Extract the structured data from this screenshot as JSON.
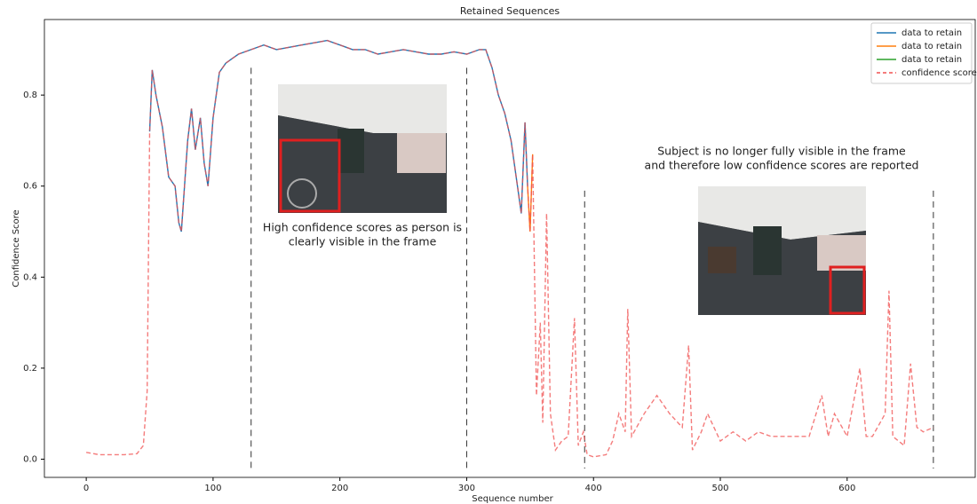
{
  "chart_data": {
    "type": "line",
    "title": "Retained Sequences",
    "x_label": "Sequence number",
    "y_label": "Confidence Score",
    "xlim": [
      -33,
      701
    ],
    "ylim": [
      -0.04,
      0.966
    ],
    "xticks": [
      0,
      100,
      200,
      300,
      400,
      500,
      600
    ],
    "yticks": [
      {
        "value": 0,
        "label": "0.0"
      },
      0.2,
      0.4,
      0.6,
      0.8
    ],
    "legend": "upper right",
    "x": [
      0,
      10,
      20,
      30,
      40,
      45,
      48,
      50,
      52,
      55,
      60,
      65,
      70,
      73,
      75,
      80,
      83,
      86,
      90,
      93,
      96,
      100,
      105,
      110,
      115,
      120,
      130,
      140,
      150,
      160,
      170,
      180,
      190,
      200,
      210,
      220,
      230,
      240,
      250,
      260,
      270,
      280,
      290,
      300,
      310,
      315,
      320,
      325,
      330,
      335,
      340,
      343,
      346,
      348,
      350,
      352,
      355,
      358,
      360,
      363,
      366,
      370,
      375,
      380,
      385,
      388,
      392,
      395,
      400,
      410,
      415,
      420,
      425,
      427,
      430,
      440,
      450,
      460,
      470,
      475,
      478,
      485,
      490,
      500,
      510,
      520,
      530,
      540,
      550,
      560,
      570,
      580,
      585,
      590,
      600,
      610,
      615,
      620,
      630,
      633,
      636,
      645,
      650,
      655,
      660,
      668
    ],
    "series": [
      {
        "name": "data to retain",
        "color": "#1f77b4",
        "values": [
          null,
          null,
          null,
          null,
          null,
          null,
          null,
          0.72,
          0.855,
          0.8,
          0.73,
          0.62,
          0.6,
          0.52,
          0.5,
          0.7,
          0.77,
          0.68,
          0.75,
          0.65,
          0.6,
          0.75,
          0.85,
          0.87,
          0.88,
          0.89,
          0.9,
          0.91,
          0.9,
          0.905,
          0.91,
          0.915,
          0.92,
          0.91,
          0.9,
          0.9,
          0.89,
          0.895,
          0.9,
          0.895,
          0.89,
          0.89,
          0.895,
          0.89,
          0.9,
          0.9,
          0.86,
          0.8,
          0.76,
          0.7,
          0.6,
          0.54,
          0.74,
          0.6,
          null,
          null,
          null,
          null,
          null,
          null,
          null,
          null,
          null,
          null,
          null,
          null,
          null,
          null,
          null,
          null,
          null,
          null,
          null,
          null,
          null,
          null,
          null,
          null,
          null,
          null,
          null,
          null,
          null,
          null,
          null,
          null,
          null,
          null,
          null,
          null,
          null,
          null,
          null,
          null,
          null,
          null,
          null,
          null,
          null,
          null,
          null,
          null,
          null,
          null,
          null,
          null
        ]
      },
      {
        "name": "data to retain",
        "color": "#ff7f0e",
        "values": [
          null,
          null,
          null,
          null,
          null,
          null,
          null,
          null,
          null,
          null,
          null,
          null,
          null,
          null,
          null,
          null,
          null,
          null,
          null,
          null,
          null,
          null,
          null,
          null,
          null,
          null,
          null,
          null,
          null,
          null,
          null,
          null,
          null,
          null,
          null,
          null,
          null,
          null,
          null,
          null,
          null,
          null,
          null,
          null,
          null,
          null,
          null,
          null,
          null,
          null,
          null,
          null,
          null,
          0.6,
          0.5,
          0.67,
          null,
          null,
          null,
          null,
          null,
          null,
          null,
          null,
          null,
          null,
          null,
          null,
          null,
          null,
          null,
          null,
          null,
          null,
          null,
          null,
          null,
          null,
          null,
          null,
          null,
          null,
          null,
          null,
          null,
          null,
          null,
          null,
          null,
          null,
          null,
          null,
          null,
          null,
          null,
          null,
          null,
          null,
          null,
          null,
          null,
          null,
          null,
          null,
          null,
          null
        ]
      },
      {
        "name": "data to retain",
        "color": "#2ca02c",
        "values": [
          null,
          null,
          null,
          null,
          null,
          null,
          null,
          null,
          null,
          null,
          null,
          null,
          null,
          null,
          null,
          null,
          null,
          null,
          null,
          null,
          null,
          null,
          null,
          null,
          null,
          null,
          null,
          null,
          null,
          null,
          null,
          null,
          null,
          null,
          null,
          null,
          null,
          null,
          null,
          null,
          null,
          null,
          null,
          null,
          null,
          null,
          null,
          null,
          null,
          null,
          null,
          null,
          null,
          null,
          null,
          null,
          null,
          null,
          null,
          null,
          null,
          null,
          null,
          null,
          null,
          null,
          null,
          null,
          null,
          null,
          null,
          null,
          null,
          null,
          null,
          null,
          null,
          null,
          null,
          null,
          null,
          null,
          null,
          null,
          null,
          null,
          null,
          null,
          null,
          null,
          null,
          null,
          null,
          null,
          null,
          null,
          null,
          null,
          null,
          null,
          null,
          null,
          null,
          null,
          null,
          null
        ]
      },
      {
        "name": "confidence score",
        "color": "#f05050",
        "dashed": true,
        "values": [
          0.015,
          0.01,
          0.01,
          0.01,
          0.012,
          0.03,
          0.15,
          0.72,
          0.855,
          0.8,
          0.73,
          0.62,
          0.6,
          0.52,
          0.5,
          0.7,
          0.77,
          0.68,
          0.75,
          0.65,
          0.6,
          0.75,
          0.85,
          0.87,
          0.88,
          0.89,
          0.9,
          0.91,
          0.9,
          0.905,
          0.91,
          0.915,
          0.92,
          0.91,
          0.9,
          0.9,
          0.89,
          0.895,
          0.9,
          0.895,
          0.89,
          0.89,
          0.895,
          0.89,
          0.9,
          0.9,
          0.86,
          0.8,
          0.76,
          0.7,
          0.6,
          0.54,
          0.74,
          0.6,
          0.5,
          0.67,
          0.14,
          0.3,
          0.08,
          0.54,
          0.1,
          0.02,
          0.04,
          0.05,
          0.31,
          0.03,
          0.06,
          0.01,
          0.005,
          0.01,
          0.04,
          0.1,
          0.06,
          0.33,
          0.05,
          0.1,
          0.14,
          0.1,
          0.07,
          0.25,
          0.02,
          0.06,
          0.1,
          0.04,
          0.06,
          0.04,
          0.06,
          0.05,
          0.05,
          0.05,
          0.05,
          0.14,
          0.05,
          0.1,
          0.05,
          0.2,
          0.05,
          0.05,
          0.1,
          0.37,
          0.05,
          0.03,
          0.21,
          0.07,
          0.06,
          0.07
        ]
      }
    ],
    "vlines": [
      {
        "x": 130,
        "ymax": 0.86
      },
      {
        "x": 300,
        "ymax": 0.86
      },
      {
        "x": 393,
        "ymax": 0.59
      },
      {
        "x": 668,
        "ymax": 0.59
      }
    ],
    "annotations": [
      {
        "lines": [
          "High confidence scores as person is",
          "clearly visible in the frame"
        ]
      },
      {
        "lines": [
          "Subject is no longer fully visible in the frame",
          "and therefore low confidence scores are reported"
        ]
      }
    ]
  }
}
